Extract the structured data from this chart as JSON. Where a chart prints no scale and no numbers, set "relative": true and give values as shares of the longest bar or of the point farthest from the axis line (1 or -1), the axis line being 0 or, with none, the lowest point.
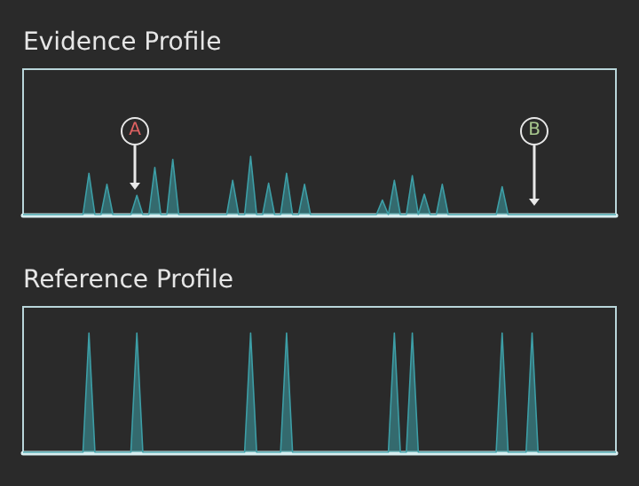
{
  "chart_data": [
    {
      "type": "area",
      "title": "Evidence Profile",
      "relative": true,
      "color": "#3d9ea6",
      "grid": false,
      "annotations": [
        "A",
        "B"
      ],
      "categories": [
        null,
        null,
        null,
        null,
        null,
        null,
        null,
        null,
        null,
        null,
        null,
        null,
        null,
        null,
        null,
        null,
        null,
        null,
        null,
        null,
        null,
        null,
        null,
        null,
        null,
        null,
        null,
        null,
        null,
        null,
        null,
        null,
        null,
        null,
        null,
        null,
        null,
        null,
        null,
        null,
        null,
        null,
        null,
        null,
        null,
        null,
        null,
        null,
        null,
        null,
        null,
        null,
        null,
        null,
        null,
        null,
        null,
        null,
        null,
        null,
        null,
        null,
        null,
        null,
        null,
        null,
        null,
        null,
        null,
        null,
        null,
        null,
        null,
        null,
        null,
        null,
        null,
        null,
        null,
        null,
        null,
        null,
        null,
        null,
        null,
        null,
        null,
        null,
        null,
        null,
        null,
        null,
        null,
        null,
        null,
        null,
        null,
        null,
        null,
        null
      ],
      "values": [
        0,
        0,
        0,
        0,
        0,
        0,
        0,
        0,
        0,
        0,
        0,
        0.71,
        0,
        0,
        0.52,
        0,
        0,
        0,
        0,
        0.33,
        0,
        0,
        0.81,
        0,
        0,
        0.95,
        0,
        0,
        0,
        0,
        0,
        0,
        0,
        0,
        0,
        0.59,
        0,
        0,
        1,
        0,
        0,
        0.54,
        0,
        0,
        0.71,
        0,
        0,
        0.52,
        0,
        0,
        0,
        0,
        0,
        0,
        0,
        0,
        0,
        0,
        0,
        0,
        0.25,
        0,
        0.59,
        0,
        0,
        0.67,
        0,
        0.35,
        0,
        0,
        0.52,
        0,
        0,
        0,
        0,
        0,
        0,
        0,
        0,
        0,
        0.48,
        0,
        0,
        0,
        0,
        0,
        0,
        0,
        0,
        0,
        0,
        0,
        0,
        0,
        0,
        0,
        0,
        0,
        0,
        0
      ]
    },
    {
      "type": "area",
      "title": "Reference Profile",
      "relative": true,
      "color": "#3d9ea6",
      "grid": false,
      "categories": [
        null,
        null,
        null,
        null,
        null,
        null,
        null,
        null,
        null,
        null,
        null,
        null,
        null,
        null,
        null,
        null,
        null,
        null,
        null,
        null,
        null,
        null,
        null,
        null,
        null,
        null,
        null,
        null,
        null,
        null,
        null,
        null,
        null,
        null,
        null,
        null,
        null,
        null,
        null,
        null,
        null,
        null,
        null,
        null,
        null,
        null,
        null,
        null,
        null,
        null,
        null,
        null,
        null,
        null,
        null,
        null,
        null,
        null,
        null,
        null,
        null,
        null,
        null,
        null,
        null,
        null,
        null,
        null,
        null,
        null,
        null,
        null,
        null,
        null,
        null,
        null,
        null,
        null,
        null,
        null,
        null,
        null,
        null,
        null,
        null,
        null,
        null,
        null,
        null,
        null,
        null,
        null,
        null,
        null,
        null,
        null,
        null,
        null,
        null,
        null
      ],
      "values": [
        0,
        0,
        0,
        0,
        0,
        0,
        0,
        0,
        0,
        0,
        0,
        1,
        0,
        0,
        0,
        0,
        0,
        0,
        0,
        1,
        0,
        0,
        0,
        0,
        0,
        0,
        0,
        0,
        0,
        0,
        0,
        0,
        0,
        0,
        0,
        0,
        0,
        0,
        1,
        0,
        0,
        0,
        0,
        0,
        1,
        0,
        0,
        0,
        0,
        0,
        0,
        0,
        0,
        0,
        0,
        0,
        0,
        0,
        0,
        0,
        0,
        0,
        1,
        0,
        0,
        1,
        0,
        0,
        0,
        0,
        0,
        0,
        0,
        0,
        0,
        0,
        0,
        0,
        0,
        0,
        1,
        0,
        0,
        0,
        0,
        1,
        0,
        0,
        0,
        0,
        0,
        0,
        0,
        0,
        0,
        0,
        0,
        0,
        0,
        0
      ]
    }
  ]
}
